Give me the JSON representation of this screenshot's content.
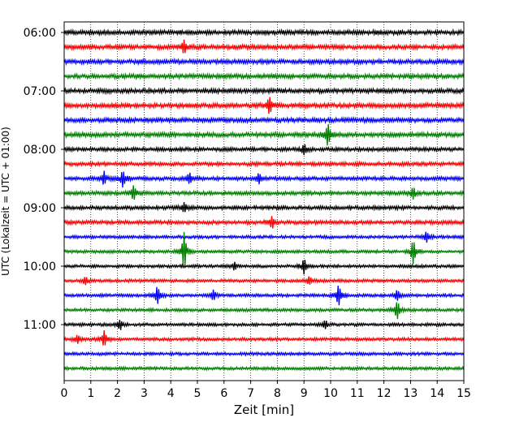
{
  "chart_data": {
    "type": "line",
    "title": "",
    "xlabel": "Zeit  [min]",
    "ylabel": "UTC (Lokalzeit = UTC + 01:00)",
    "xlim": [
      0,
      15
    ],
    "x_ticks": [
      "0",
      "1",
      "2",
      "3",
      "4",
      "5",
      "6",
      "7",
      "8",
      "9",
      "10",
      "11",
      "12",
      "13",
      "14",
      "15"
    ],
    "y_ticks": [
      "06:00",
      "07:00",
      "08:00",
      "09:00",
      "10:00",
      "11:00"
    ],
    "grid": "vertical dotted",
    "trace_colors": [
      "#000000",
      "#ff0000",
      "#0000ff",
      "#007f00"
    ],
    "trace_minutes_per_line": 15,
    "trace_start": "06:00",
    "trace_count": 24,
    "noise_bursts": [
      {
        "line": 1,
        "x": 4.5,
        "amp": 1.2
      },
      {
        "line": 5,
        "x": 7.7,
        "amp": 1.8
      },
      {
        "line": 7,
        "x": 9.9,
        "amp": 2.2
      },
      {
        "line": 8,
        "x": 9.0,
        "amp": 1.0
      },
      {
        "line": 10,
        "x": 1.5,
        "amp": 1.3
      },
      {
        "line": 10,
        "x": 2.2,
        "amp": 1.7
      },
      {
        "line": 10,
        "x": 4.7,
        "amp": 1.0
      },
      {
        "line": 10,
        "x": 7.3,
        "amp": 1.0
      },
      {
        "line": 11,
        "x": 2.6,
        "amp": 1.5
      },
      {
        "line": 11,
        "x": 13.1,
        "amp": 1.0
      },
      {
        "line": 12,
        "x": 4.5,
        "amp": 1.0
      },
      {
        "line": 13,
        "x": 7.8,
        "amp": 1.2
      },
      {
        "line": 14,
        "x": 13.6,
        "amp": 1.0
      },
      {
        "line": 15,
        "x": 4.5,
        "amp": 3.8
      },
      {
        "line": 15,
        "x": 13.1,
        "amp": 2.4
      },
      {
        "line": 16,
        "x": 9.0,
        "amp": 1.5
      },
      {
        "line": 16,
        "x": 6.4,
        "amp": 0.8
      },
      {
        "line": 17,
        "x": 0.8,
        "amp": 0.8
      },
      {
        "line": 17,
        "x": 9.2,
        "amp": 0.8
      },
      {
        "line": 18,
        "x": 3.5,
        "amp": 1.8
      },
      {
        "line": 18,
        "x": 10.3,
        "amp": 2.2
      },
      {
        "line": 18,
        "x": 5.6,
        "amp": 1.0
      },
      {
        "line": 18,
        "x": 12.5,
        "amp": 1.0
      },
      {
        "line": 19,
        "x": 12.5,
        "amp": 1.8
      },
      {
        "line": 20,
        "x": 2.1,
        "amp": 1.0
      },
      {
        "line": 20,
        "x": 9.8,
        "amp": 0.8
      },
      {
        "line": 21,
        "x": 1.5,
        "amp": 1.6
      },
      {
        "line": 21,
        "x": 0.5,
        "amp": 0.9
      }
    ]
  }
}
